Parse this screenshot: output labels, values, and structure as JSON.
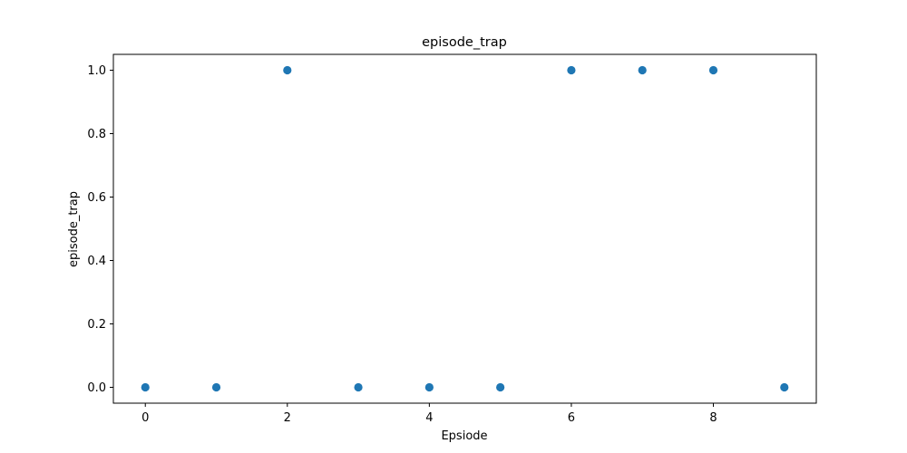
{
  "chart_data": {
    "type": "scatter",
    "title": "episode_trap",
    "xlabel": "Epsiode",
    "ylabel": "episode_trap",
    "xlim": [
      -0.45,
      9.45
    ],
    "ylim": [
      -0.05,
      1.05
    ],
    "xticks": [
      0,
      2,
      4,
      6,
      8
    ],
    "xtick_labels": [
      "0",
      "2",
      "4",
      "6",
      "8"
    ],
    "yticks": [
      0.0,
      0.2,
      0.4,
      0.6,
      0.8,
      1.0
    ],
    "ytick_labels": [
      "0.0",
      "0.2",
      "0.4",
      "0.6",
      "0.8",
      "1.0"
    ],
    "grid": false,
    "legend": "none",
    "marker_color": "#1f77b4",
    "points": [
      {
        "x": 0,
        "y": 0
      },
      {
        "x": 1,
        "y": 0
      },
      {
        "x": 2,
        "y": 1
      },
      {
        "x": 3,
        "y": 0
      },
      {
        "x": 4,
        "y": 0
      },
      {
        "x": 5,
        "y": 0
      },
      {
        "x": 6,
        "y": 1
      },
      {
        "x": 7,
        "y": 1
      },
      {
        "x": 8,
        "y": 1
      },
      {
        "x": 9,
        "y": 0
      }
    ]
  }
}
